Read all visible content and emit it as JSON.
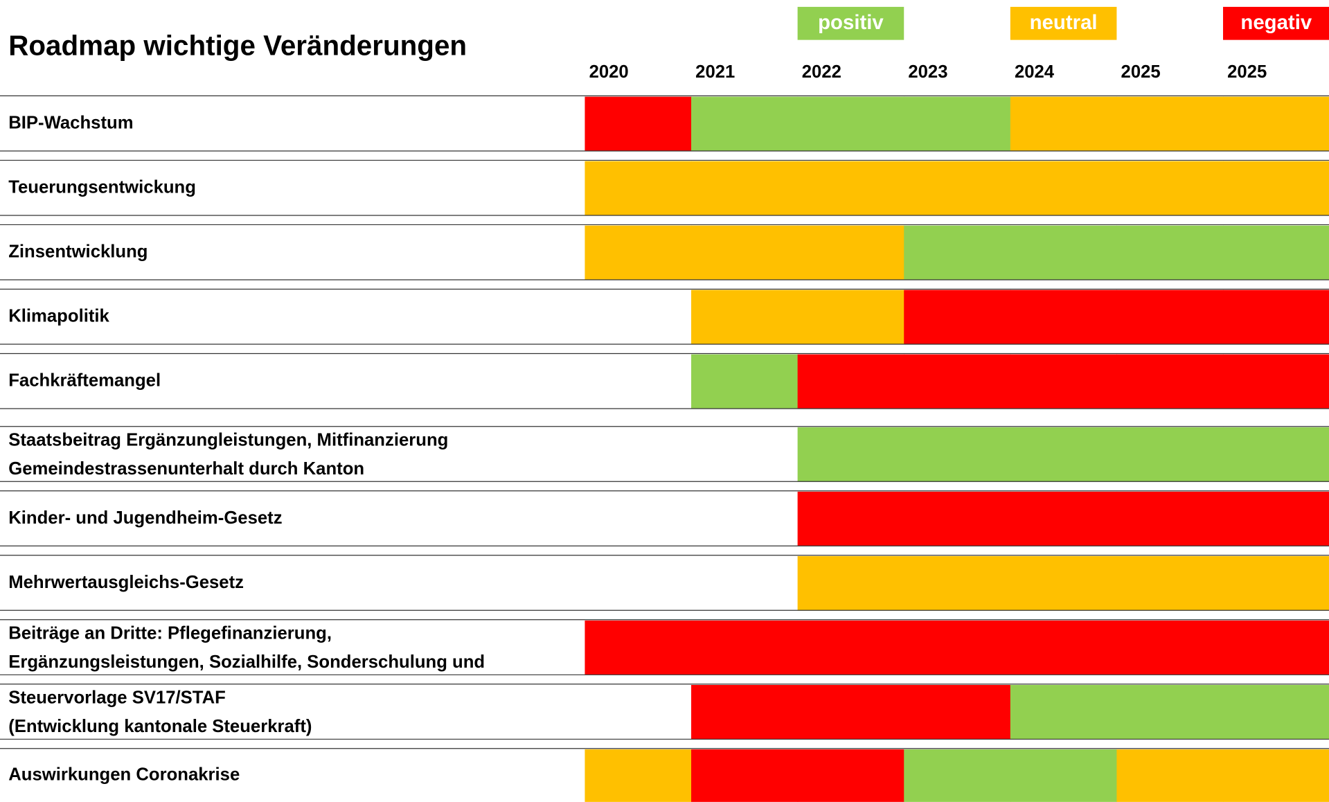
{
  "title": "Roadmap wichtige Veränderungen",
  "legend": [
    {
      "name": "positiv",
      "color": "#92d050"
    },
    {
      "name": "neutral",
      "color": "#ffc000"
    },
    {
      "name": "negativ",
      "color": "#ff0000"
    }
  ],
  "years": [
    "2020",
    "2021",
    "2022",
    "2023",
    "2024",
    "2025",
    "2025"
  ],
  "rows": [
    {
      "label": [
        "BIP-Wachstum"
      ],
      "cells": [
        "negativ",
        "positiv",
        "positiv",
        "positiv",
        "neutral",
        "neutral",
        "neutral"
      ]
    },
    {
      "label": [
        "Teuerungsentwickung"
      ],
      "cells": [
        "neutral",
        "neutral",
        "neutral",
        "neutral",
        "neutral",
        "neutral",
        "neutral"
      ]
    },
    {
      "label": [
        "Zinsentwicklung"
      ],
      "cells": [
        "neutral",
        "neutral",
        "neutral",
        "positiv",
        "positiv",
        "positiv",
        "positiv"
      ]
    },
    {
      "label": [
        "Klimapolitik"
      ],
      "cells": [
        null,
        "neutral",
        "neutral",
        "negativ",
        "negativ",
        "negativ",
        "negativ"
      ]
    },
    {
      "label": [
        "Fachkräftemangel"
      ],
      "cells": [
        null,
        "positiv",
        "negativ",
        "negativ",
        "negativ",
        "negativ",
        "negativ"
      ]
    },
    {
      "label": [
        "Staatsbeitrag Ergänzungleistungen, Mitfinanzierung",
        "Gemeindestrassenunterhalt durch Kanton"
      ],
      "cells": [
        null,
        null,
        "positiv",
        "positiv",
        "positiv",
        "positiv",
        "positiv"
      ]
    },
    {
      "label": [
        "Kinder- und Jugendheim-Gesetz"
      ],
      "cells": [
        null,
        null,
        "negativ",
        "negativ",
        "negativ",
        "negativ",
        "negativ"
      ]
    },
    {
      "label": [
        "Mehrwertausgleichs-Gesetz"
      ],
      "cells": [
        null,
        null,
        "neutral",
        "neutral",
        "neutral",
        "neutral",
        "neutral"
      ]
    },
    {
      "label": [
        "Beiträge an Dritte: Pflegefinanzierung,",
        "Ergänzungsleistungen, Sozialhilfe, Sonderschulung und"
      ],
      "cells": [
        "negativ",
        "negativ",
        "negativ",
        "negativ",
        "negativ",
        "negativ",
        "negativ"
      ]
    },
    {
      "label": [
        "Steuervorlage SV17/STAF",
        "(Entwicklung kantonale Steuerkraft)"
      ],
      "cells": [
        null,
        "negativ",
        "negativ",
        "negativ",
        "positiv",
        "positiv",
        "positiv"
      ]
    },
    {
      "label": [
        "Auswirkungen Coronakrise"
      ],
      "cells": [
        "neutral",
        "negativ",
        "negativ",
        "positiv",
        "positiv",
        "neutral",
        "neutral"
      ]
    }
  ]
}
